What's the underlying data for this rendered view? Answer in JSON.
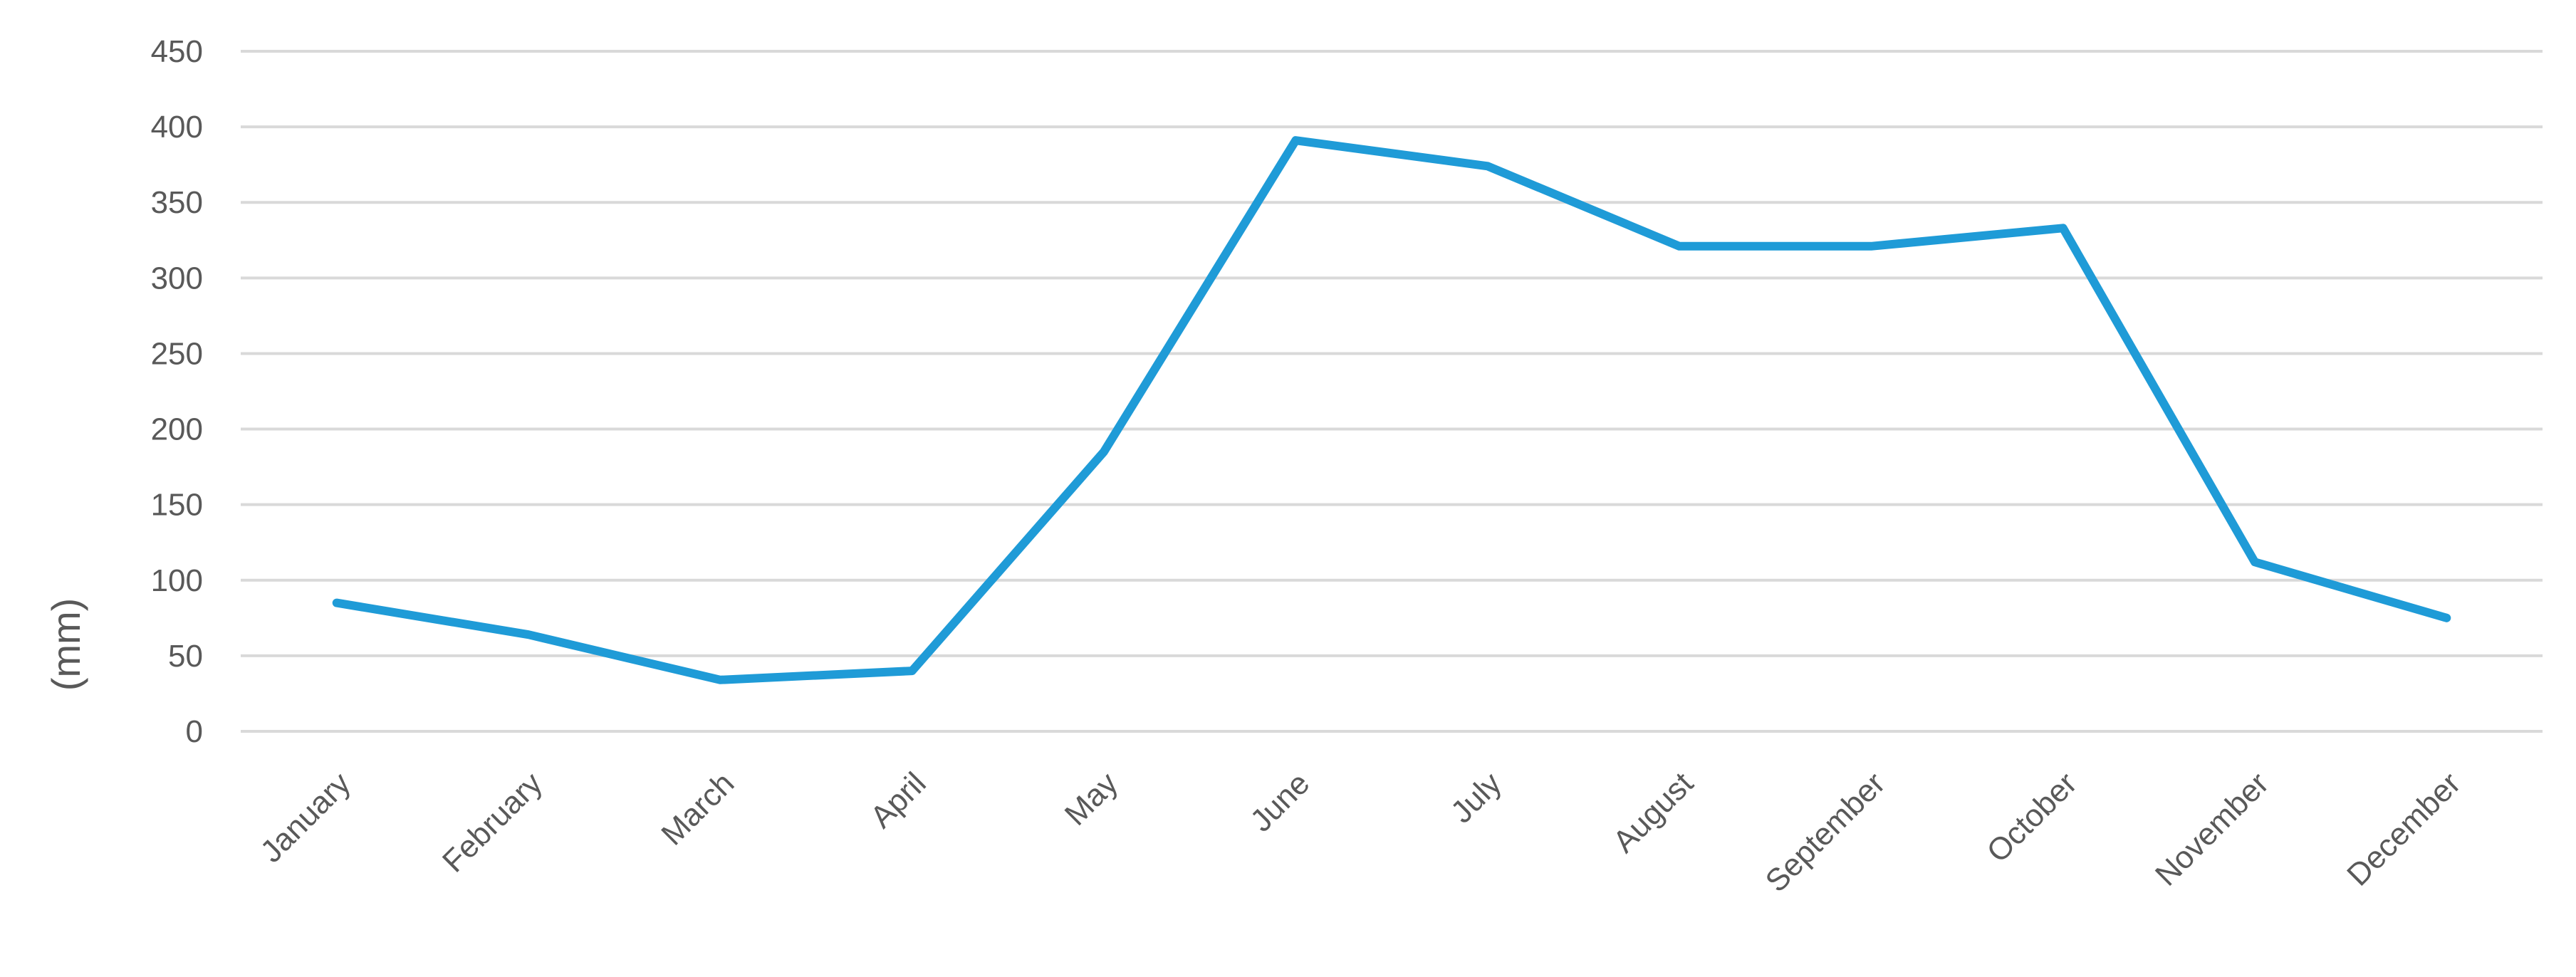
{
  "chart_data": {
    "type": "line",
    "title": "",
    "xlabel": "",
    "ylabel": "(mm)",
    "ylim": [
      0,
      450
    ],
    "yticks": [
      0,
      50,
      100,
      150,
      200,
      250,
      300,
      350,
      400,
      450
    ],
    "grid": true,
    "categories": [
      "January",
      "February",
      "March",
      "April",
      "May",
      "June",
      "July",
      "August",
      "September",
      "October",
      "November",
      "December"
    ],
    "series": [
      {
        "color": "#1f9bd7",
        "values": [
          85,
          64,
          34,
          40,
          185,
          391,
          374,
          321,
          321,
          333,
          112,
          75
        ]
      }
    ]
  }
}
